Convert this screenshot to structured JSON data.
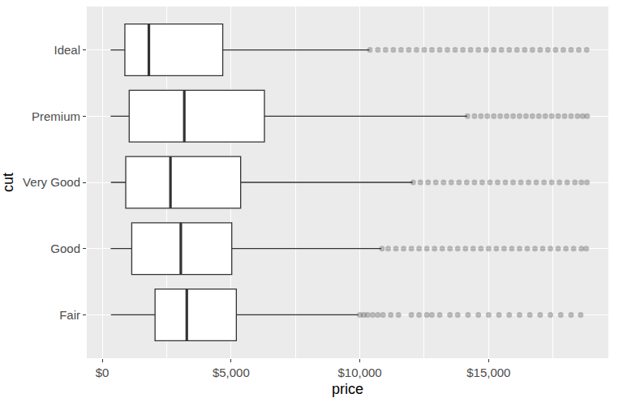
{
  "chart_data": {
    "type": "box",
    "orientation": "horizontal",
    "x_label": "price",
    "y_label": "cut",
    "categories": [
      "Fair",
      "Good",
      "Very Good",
      "Premium",
      "Ideal"
    ],
    "boxes": [
      {
        "category": "Fair",
        "lower_whisker": 337,
        "q1": 2050,
        "median": 3282,
        "q3": 5206,
        "upper_whisker": 9937,
        "outliers": [
          10000,
          10150,
          10300,
          10500,
          10700,
          10900,
          11200,
          11500,
          12000,
          12300,
          12600,
          12800,
          13100,
          13500,
          13800,
          14200,
          14600,
          15000,
          15400,
          15800,
          16200,
          16600,
          17000,
          17400,
          17800,
          18200,
          18574
        ]
      },
      {
        "category": "Good",
        "lower_whisker": 327,
        "q1": 1145,
        "median": 3050,
        "q3": 5028,
        "upper_whisker": 10836,
        "outliers": [
          10860,
          11100,
          11400,
          11700,
          12000,
          12300,
          12600,
          12900,
          13200,
          13500,
          13800,
          14100,
          14400,
          14700,
          15000,
          15300,
          15600,
          15900,
          16200,
          16500,
          16800,
          17100,
          17400,
          17700,
          18000,
          18300,
          18600,
          18788
        ]
      },
      {
        "category": "Very Good",
        "lower_whisker": 336,
        "q1": 912,
        "median": 2648,
        "q3": 5373,
        "upper_whisker": 12049,
        "outliers": [
          12070,
          12350,
          12650,
          12950,
          13250,
          13550,
          13850,
          14150,
          14450,
          14750,
          15050,
          15350,
          15650,
          15950,
          16250,
          16550,
          16850,
          17150,
          17450,
          17750,
          18050,
          18350,
          18600,
          18818
        ]
      },
      {
        "category": "Premium",
        "lower_whisker": 326,
        "q1": 1046,
        "median": 3185,
        "q3": 6296,
        "upper_whisker": 14165,
        "outliers": [
          14180,
          14450,
          14700,
          14950,
          15200,
          15450,
          15700,
          15950,
          16200,
          16450,
          16700,
          16950,
          17200,
          17450,
          17700,
          17950,
          18200,
          18450,
          18650,
          18823
        ]
      },
      {
        "category": "Ideal",
        "lower_whisker": 326,
        "q1": 878,
        "median": 1810,
        "q3": 4678,
        "upper_whisker": 10370,
        "outliers": [
          10390,
          10700,
          11000,
          11300,
          11600,
          11900,
          12200,
          12500,
          12800,
          13100,
          13400,
          13700,
          14000,
          14300,
          14600,
          14900,
          15200,
          15500,
          15800,
          16100,
          16400,
          16700,
          17000,
          17300,
          17600,
          17900,
          18200,
          18500,
          18806
        ]
      }
    ],
    "xlim": [
      -600,
      19650
    ],
    "xticks": [
      {
        "value": 0,
        "label": "$0"
      },
      {
        "value": 5000,
        "label": "$5,000"
      },
      {
        "value": 10000,
        "label": "$10,000"
      },
      {
        "value": 15000,
        "label": "$15,000"
      }
    ],
    "grid": true,
    "color": "#333333"
  }
}
